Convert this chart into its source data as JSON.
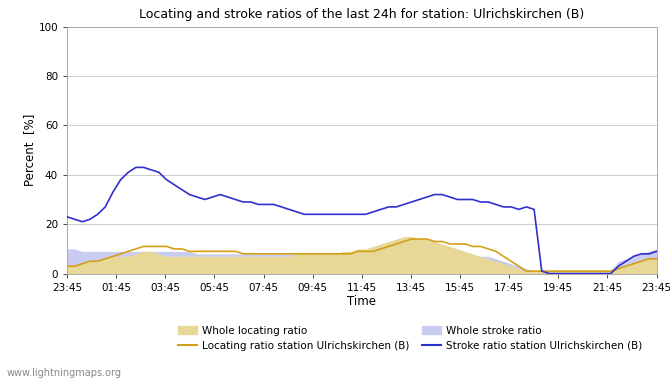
{
  "title": "Locating and stroke ratios of the last 24h for station: Ulrichskirchen (B)",
  "xlabel": "Time",
  "ylabel": "Percent  [%]",
  "ylim": [
    0,
    100
  ],
  "yticks": [
    0,
    20,
    40,
    60,
    80,
    100
  ],
  "x_labels": [
    "23:45",
    "01:45",
    "03:45",
    "05:45",
    "07:45",
    "09:45",
    "11:45",
    "13:45",
    "15:45",
    "17:45",
    "19:45",
    "21:45",
    "23:45"
  ],
  "watermark": "www.lightningmaps.org",
  "colors": {
    "whole_locating_fill": "#e8d898",
    "whole_stroke_fill": "#c8ccf0",
    "locating_station_line": "#d4a017",
    "stroke_station_line": "#3030cc"
  },
  "whole_locating_ratio": [
    3,
    3,
    4,
    5,
    5,
    6,
    7,
    7,
    7,
    8,
    9,
    9,
    8,
    7,
    7,
    7,
    7,
    7,
    7,
    7,
    7,
    7,
    7,
    7,
    7,
    7,
    7,
    7,
    7,
    7,
    8,
    8,
    8,
    8,
    8,
    8,
    9,
    9,
    10,
    10,
    11,
    12,
    13,
    14,
    15,
    15,
    14,
    14,
    13,
    12,
    11,
    10,
    9,
    8,
    7,
    6,
    5,
    4,
    3,
    2,
    1,
    1,
    1,
    1,
    1,
    1,
    1,
    1,
    1,
    1,
    1,
    1,
    2,
    3,
    4,
    5,
    6,
    6
  ],
  "whole_stroke_ratio": [
    10,
    10,
    9,
    9,
    9,
    9,
    9,
    9,
    9,
    9,
    9,
    9,
    9,
    9,
    9,
    9,
    9,
    8,
    8,
    8,
    8,
    8,
    8,
    8,
    8,
    8,
    8,
    8,
    8,
    8,
    8,
    8,
    8,
    8,
    8,
    8,
    8,
    8,
    8,
    8,
    8,
    8,
    8,
    8,
    8,
    8,
    8,
    8,
    8,
    8,
    8,
    8,
    8,
    7,
    7,
    7,
    6,
    5,
    4,
    3,
    2,
    1,
    1,
    1,
    1,
    1,
    1,
    1,
    1,
    1,
    1,
    1,
    5,
    6,
    7,
    8,
    9,
    10
  ],
  "locating_station": [
    3,
    3,
    4,
    5,
    5,
    6,
    7,
    8,
    9,
    10,
    11,
    11,
    11,
    11,
    10,
    10,
    9,
    9,
    9,
    9,
    9,
    9,
    9,
    8,
    8,
    8,
    8,
    8,
    8,
    8,
    8,
    8,
    8,
    8,
    8,
    8,
    8,
    8,
    9,
    9,
    9,
    10,
    11,
    12,
    13,
    14,
    14,
    14,
    13,
    13,
    12,
    12,
    12,
    11,
    11,
    10,
    9,
    7,
    5,
    3,
    1,
    1,
    1,
    1,
    1,
    1,
    1,
    1,
    1,
    1,
    1,
    1,
    2,
    3,
    4,
    5,
    6,
    6
  ],
  "stroke_station": [
    23,
    22,
    21,
    22,
    24,
    27,
    33,
    38,
    41,
    43,
    43,
    42,
    41,
    38,
    36,
    34,
    32,
    31,
    30,
    31,
    32,
    31,
    30,
    29,
    29,
    28,
    28,
    28,
    27,
    26,
    25,
    24,
    24,
    24,
    24,
    24,
    24,
    24,
    24,
    24,
    25,
    26,
    27,
    27,
    28,
    29,
    30,
    31,
    32,
    32,
    31,
    30,
    30,
    30,
    29,
    29,
    28,
    27,
    27,
    26,
    27,
    26,
    1,
    0,
    0,
    0,
    0,
    0,
    0,
    0,
    0,
    0,
    3,
    5,
    7,
    8,
    8,
    9
  ]
}
